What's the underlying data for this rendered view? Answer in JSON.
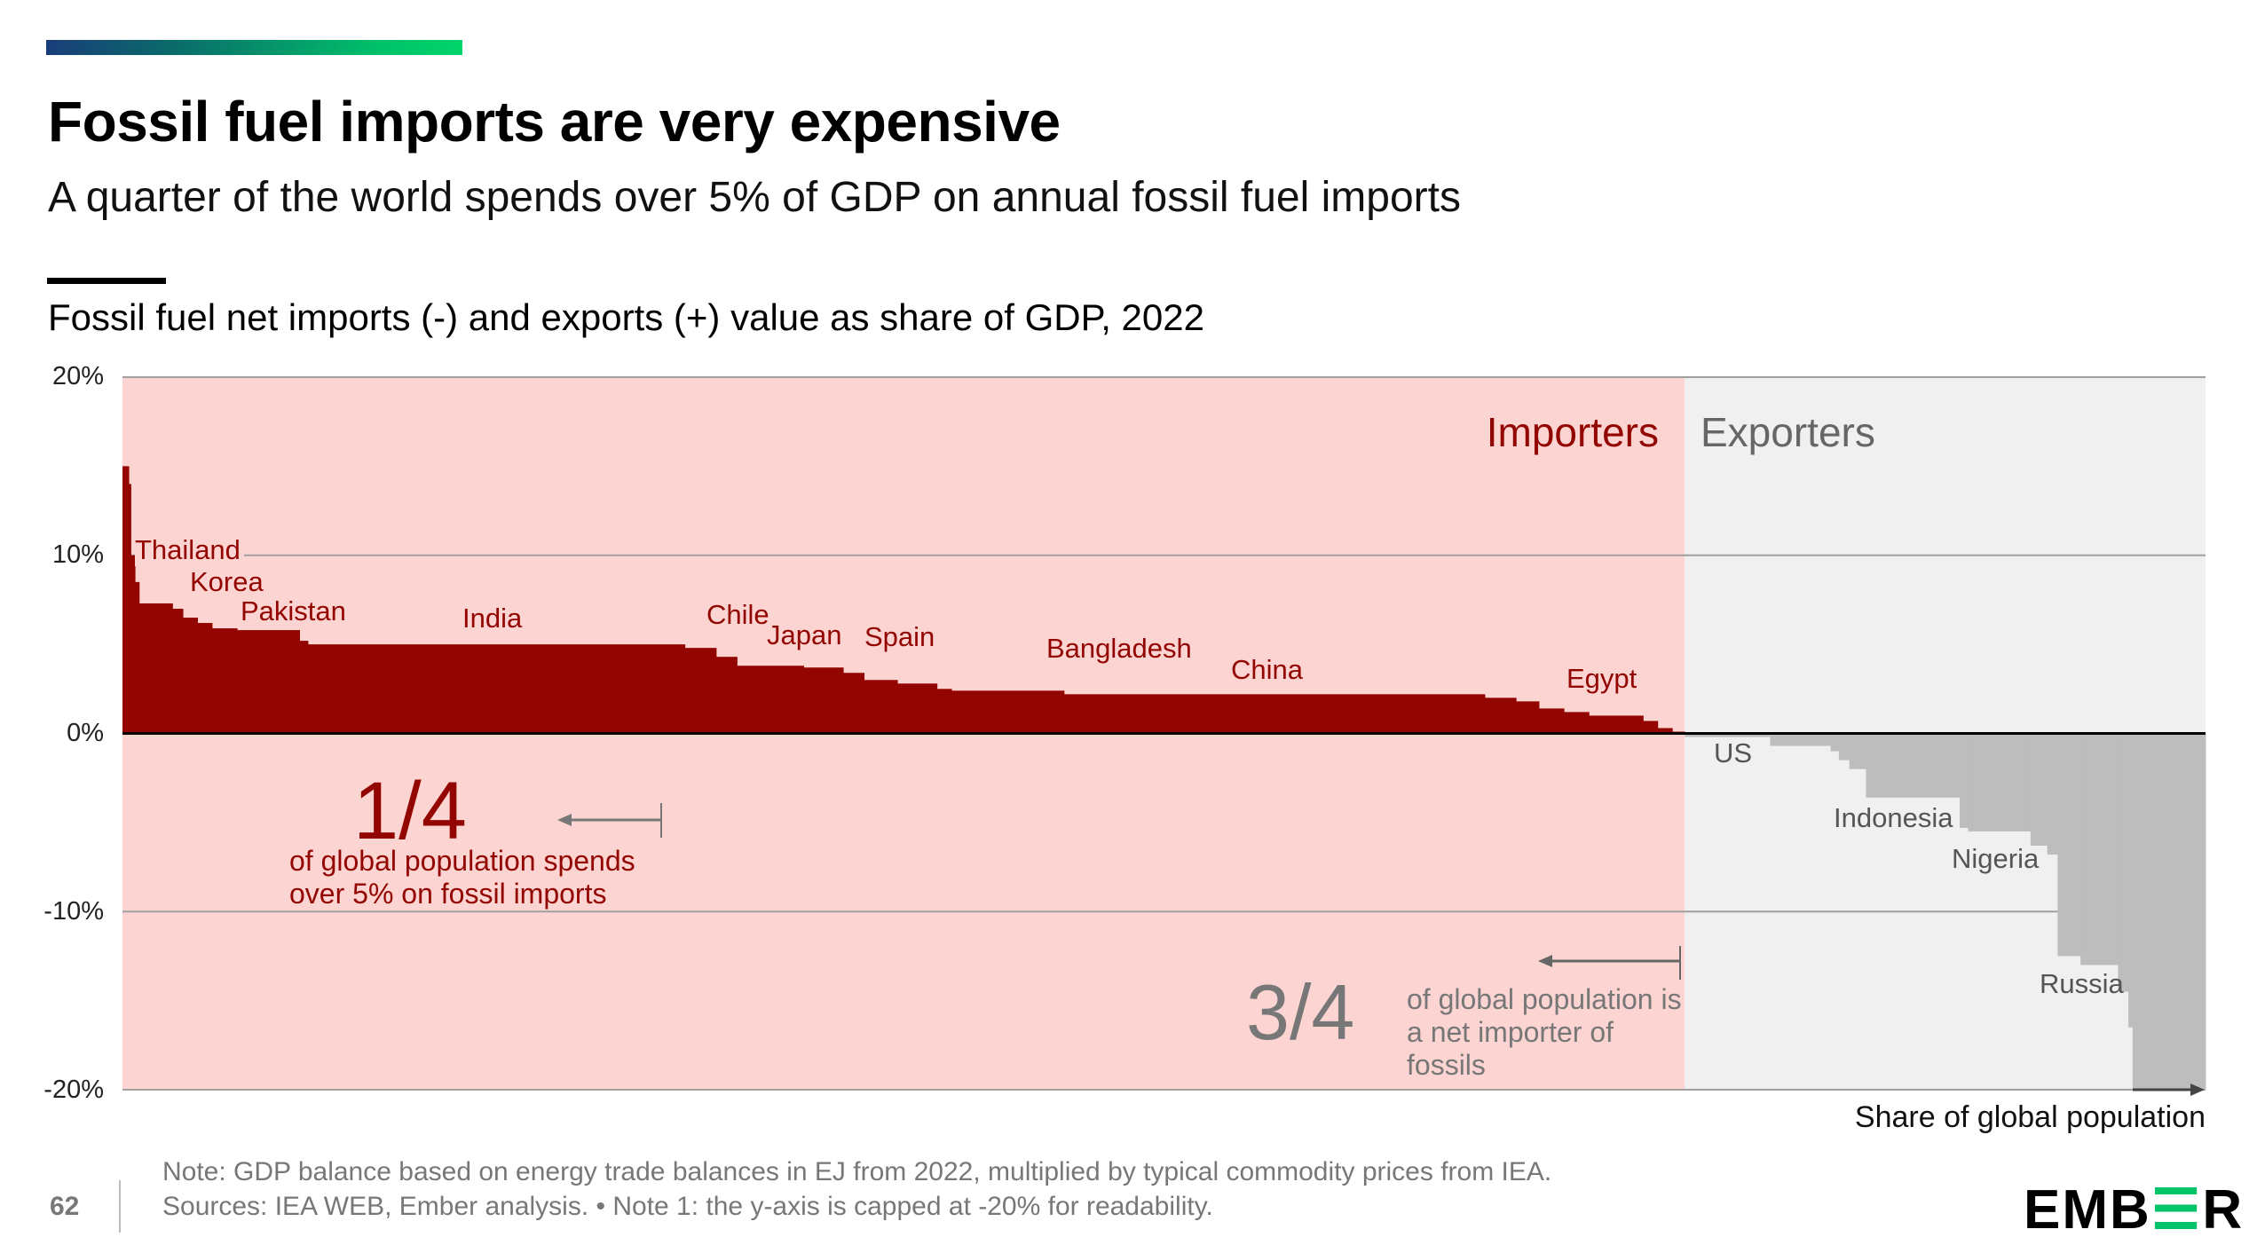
{
  "header": {
    "title": "Fossil fuel imports are very expensive",
    "subtitle": "A quarter of the world spends over 5% of GDP on annual fossil fuel imports",
    "chart_title": "Fossil fuel net imports (-) and exports (+) value as share of GDP, 2022"
  },
  "chart_data": {
    "type": "bar",
    "title": "Fossil fuel net imports (-) and exports (+) value as share of GDP, 2022",
    "xlabel": "Share of global population",
    "ylabel": "",
    "xlim": [
      0,
      100
    ],
    "ylim": [
      -20,
      20
    ],
    "y_ticks": [
      "20%",
      "10%",
      "0%",
      "-10%",
      "-20%"
    ],
    "y_tick_values": [
      20,
      10,
      0,
      -10,
      -20
    ],
    "grid": true,
    "note": "Bars are variable-width steps: [population share start %, end %, value % of GDP]",
    "regions": [
      {
        "name": "Importers",
        "x": [
          0,
          75
        ],
        "color": "#fcd4d2"
      },
      {
        "name": "Exporters",
        "x": [
          75,
          100
        ],
        "color": "#f0f0f0"
      }
    ],
    "series": [
      {
        "name": "Importers",
        "color": "#930500",
        "steps": [
          [
            0,
            0.3,
            15
          ],
          [
            0.3,
            0.4,
            14
          ],
          [
            0.4,
            0.6,
            10
          ],
          [
            0.6,
            0.8,
            8.5
          ],
          [
            0.8,
            2.4,
            7.3
          ],
          [
            2.4,
            2.9,
            7
          ],
          [
            2.9,
            3.6,
            6.5
          ],
          [
            3.6,
            4.3,
            6.2
          ],
          [
            4.3,
            5.5,
            5.9
          ],
          [
            5.5,
            8.5,
            5.8
          ],
          [
            8.5,
            8.9,
            5.2
          ],
          [
            8.9,
            27,
            5
          ],
          [
            27,
            28.5,
            4.8
          ],
          [
            28.5,
            29.5,
            4.3
          ],
          [
            29.5,
            32.7,
            3.8
          ],
          [
            32.7,
            34.6,
            3.7
          ],
          [
            34.6,
            35.6,
            3.4
          ],
          [
            35.6,
            37.2,
            3
          ],
          [
            37.2,
            39.1,
            2.8
          ],
          [
            39.1,
            39.8,
            2.5
          ],
          [
            39.8,
            45.2,
            2.4
          ],
          [
            45.2,
            65.4,
            2.2
          ],
          [
            65.4,
            66.9,
            2
          ],
          [
            66.9,
            68,
            1.8
          ],
          [
            68,
            69.2,
            1.4
          ],
          [
            69.2,
            70.4,
            1.2
          ],
          [
            70.4,
            73,
            1
          ],
          [
            73,
            73.7,
            0.7
          ],
          [
            73.7,
            74.4,
            0.3
          ],
          [
            74.4,
            75,
            0.1
          ]
        ]
      },
      {
        "name": "Exporters",
        "color": "#bdbdbd",
        "steps": [
          [
            75,
            79.1,
            -0.2
          ],
          [
            79.1,
            82,
            -0.7
          ],
          [
            82,
            82.4,
            -1
          ],
          [
            82.4,
            82.9,
            -1.5
          ],
          [
            82.9,
            83.7,
            -2
          ],
          [
            83.7,
            88.2,
            -3.6
          ],
          [
            88.2,
            88.6,
            -5.3
          ],
          [
            88.6,
            91.6,
            -5.5
          ],
          [
            91.6,
            92.4,
            -6.3
          ],
          [
            92.4,
            92.9,
            -6.8
          ],
          [
            92.9,
            94,
            -12.5
          ],
          [
            94,
            95.8,
            -13
          ],
          [
            95.8,
            96.3,
            -14.5
          ],
          [
            96.3,
            96.5,
            -16.5
          ],
          [
            96.5,
            100,
            -20
          ]
        ]
      }
    ],
    "country_labels": [
      "Thailand",
      "Korea",
      "Pakistan",
      "India",
      "Chile",
      "Japan",
      "Spain",
      "Bangladesh",
      "China",
      "Egypt",
      "US",
      "Indonesia",
      "Nigeria",
      "Russia"
    ],
    "annotations": {
      "importers": "Importers",
      "exporters": "Exporters",
      "quarter_value": "1/4",
      "quarter_text": "of global population spends over 5% on fossil imports",
      "three_quarter_value": "3/4",
      "three_quarter_text": "of global population is a net importer of fossils"
    }
  },
  "footer": {
    "note": "Note: GDP balance based on energy trade balances in EJ from 2022, multiplied by typical commodity prices from IEA.",
    "sources": "Sources: IEA WEB, Ember analysis. • Note 1: the y-axis is capped at -20% for readability.",
    "page_number": "62",
    "logo_text": "EMBER"
  },
  "colors": {
    "importer": "#930500",
    "exporter": "#bdbdbd",
    "importer_bg": "#fcd4d2",
    "exporter_bg": "#f0f0f0",
    "accent_green": "#00c36a"
  }
}
